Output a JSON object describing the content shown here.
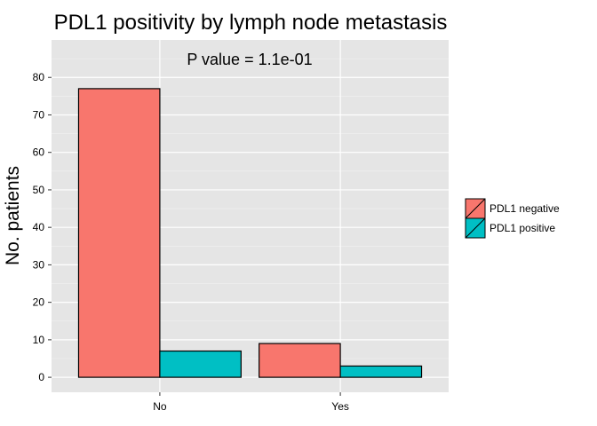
{
  "chart_data": {
    "type": "bar",
    "title": "PDL1 positivity by lymph node metastasis",
    "annotation": "P value = 1.1e-01",
    "xlabel": "",
    "ylabel": "No. patients",
    "categories": [
      "No",
      "Yes"
    ],
    "series": [
      {
        "name": "PDL1 negative",
        "values": [
          77,
          9
        ],
        "color": "#F8766D"
      },
      {
        "name": "PDL1 positive",
        "values": [
          7,
          3
        ],
        "color": "#00BFC4"
      }
    ],
    "ylim": [
      -4,
      90
    ],
    "yticks": [
      0,
      10,
      20,
      30,
      40,
      50,
      60,
      70,
      80
    ],
    "grid": true,
    "legend_position": "right",
    "background_color": "#E5E5E5",
    "grid_color": "#FFFFFF"
  }
}
